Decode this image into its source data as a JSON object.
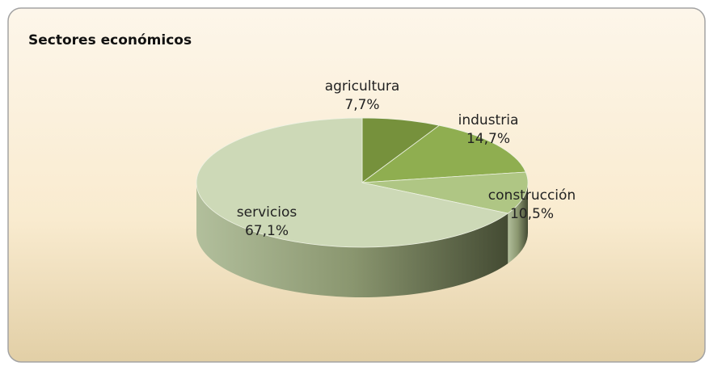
{
  "chart_data": {
    "type": "pie3d",
    "title": "Sectores económicos",
    "categories": [
      "agricultura",
      "industria",
      "construcción",
      "servicios"
    ],
    "values": [
      7.7,
      14.7,
      10.5,
      67.1
    ],
    "value_labels": [
      "7,7%",
      "14,7%",
      "10,5%",
      "67,1%"
    ],
    "colors": [
      "#76913c",
      "#8fae50",
      "#afc684",
      "#cdd9b7"
    ]
  }
}
